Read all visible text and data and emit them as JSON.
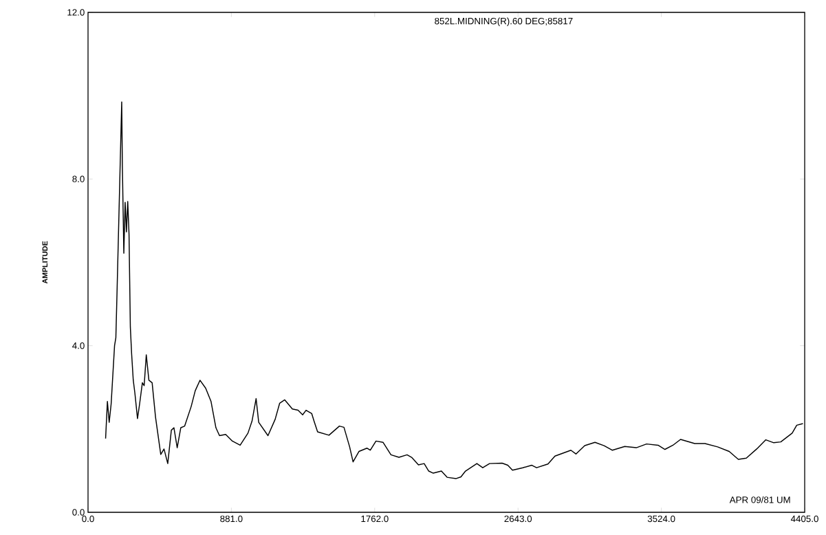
{
  "chart_data": {
    "type": "line",
    "title": "852L.MIDNING(R).60 DEG;85817",
    "ylabel": "AMPLITUDE",
    "annotations": [
      "APR 09/81 UM"
    ],
    "xlim": [
      0,
      4405
    ],
    "ylim": [
      0,
      12
    ],
    "xticks": [
      {
        "value": 0,
        "label": "0.0"
      },
      {
        "value": 881,
        "label": "881.0"
      },
      {
        "value": 1762,
        "label": "1762.0"
      },
      {
        "value": 2643,
        "label": "2643.0"
      },
      {
        "value": 3524,
        "label": "3524.0"
      },
      {
        "value": 4405,
        "label": "4405.0"
      }
    ],
    "yticks": [
      {
        "value": 0,
        "label": "0.0"
      },
      {
        "value": 4,
        "label": "4.0"
      },
      {
        "value": 8,
        "label": "8.0"
      },
      {
        "value": 12,
        "label": "12.0"
      }
    ],
    "series": [
      {
        "color": "#000000",
        "x": [
          108,
          119,
          130,
          142,
          163,
          171,
          179,
          195,
          207,
          211,
          220,
          228,
          236,
          244,
          252,
          260,
          268,
          278,
          288,
          304,
          317,
          334,
          345,
          358,
          374,
          394,
          415,
          447,
          467,
          490,
          512,
          528,
          548,
          570,
          594,
          634,
          659,
          688,
          723,
          756,
          786,
          808,
          846,
          887,
          935,
          983,
          1008,
          1033,
          1049,
          1106,
          1150,
          1178,
          1209,
          1256,
          1291,
          1319,
          1340,
          1375,
          1390,
          1411,
          1481,
          1545,
          1573,
          1608,
          1629,
          1665,
          1714,
          1735,
          1770,
          1813,
          1862,
          1911,
          1961,
          1989,
          2031,
          2066,
          2094,
          2122,
          2172,
          2207,
          2263,
          2292,
          2320,
          2390,
          2426,
          2468,
          2545,
          2580,
          2609,
          2672,
          2728,
          2757,
          2827,
          2870,
          2968,
          2999,
          3053,
          3116,
          3172,
          3222,
          3299,
          3370,
          3433,
          3504,
          3546,
          3595,
          3642,
          3729,
          3792,
          3870,
          3941,
          3997,
          4046,
          4110,
          4166,
          4215,
          4258,
          4328,
          4356,
          4394
        ],
        "values": [
          1.77,
          2.66,
          2.16,
          2.6,
          4.0,
          4.19,
          5.4,
          7.94,
          9.85,
          8.32,
          6.22,
          7.44,
          6.73,
          7.46,
          6.67,
          4.45,
          3.8,
          3.17,
          2.86,
          2.25,
          2.6,
          3.11,
          3.04,
          3.78,
          3.17,
          3.11,
          2.28,
          1.39,
          1.52,
          1.17,
          1.97,
          2.03,
          1.55,
          2.03,
          2.07,
          2.54,
          2.92,
          3.17,
          2.98,
          2.66,
          2.03,
          1.84,
          1.87,
          1.71,
          1.61,
          1.9,
          2.19,
          2.73,
          2.16,
          1.84,
          2.23,
          2.62,
          2.7,
          2.48,
          2.45,
          2.34,
          2.45,
          2.37,
          2.18,
          1.93,
          1.85,
          2.07,
          2.04,
          1.57,
          1.21,
          1.46,
          1.54,
          1.49,
          1.71,
          1.68,
          1.38,
          1.32,
          1.38,
          1.32,
          1.14,
          1.17,
          0.99,
          0.94,
          0.99,
          0.84,
          0.81,
          0.85,
          0.99,
          1.17,
          1.07,
          1.17,
          1.18,
          1.13,
          1.01,
          1.07,
          1.13,
          1.07,
          1.16,
          1.35,
          1.49,
          1.4,
          1.6,
          1.68,
          1.6,
          1.49,
          1.58,
          1.55,
          1.64,
          1.61,
          1.51,
          1.61,
          1.75,
          1.65,
          1.65,
          1.57,
          1.46,
          1.27,
          1.3,
          1.52,
          1.74,
          1.67,
          1.69,
          1.9,
          2.09,
          2.13
        ]
      }
    ]
  }
}
